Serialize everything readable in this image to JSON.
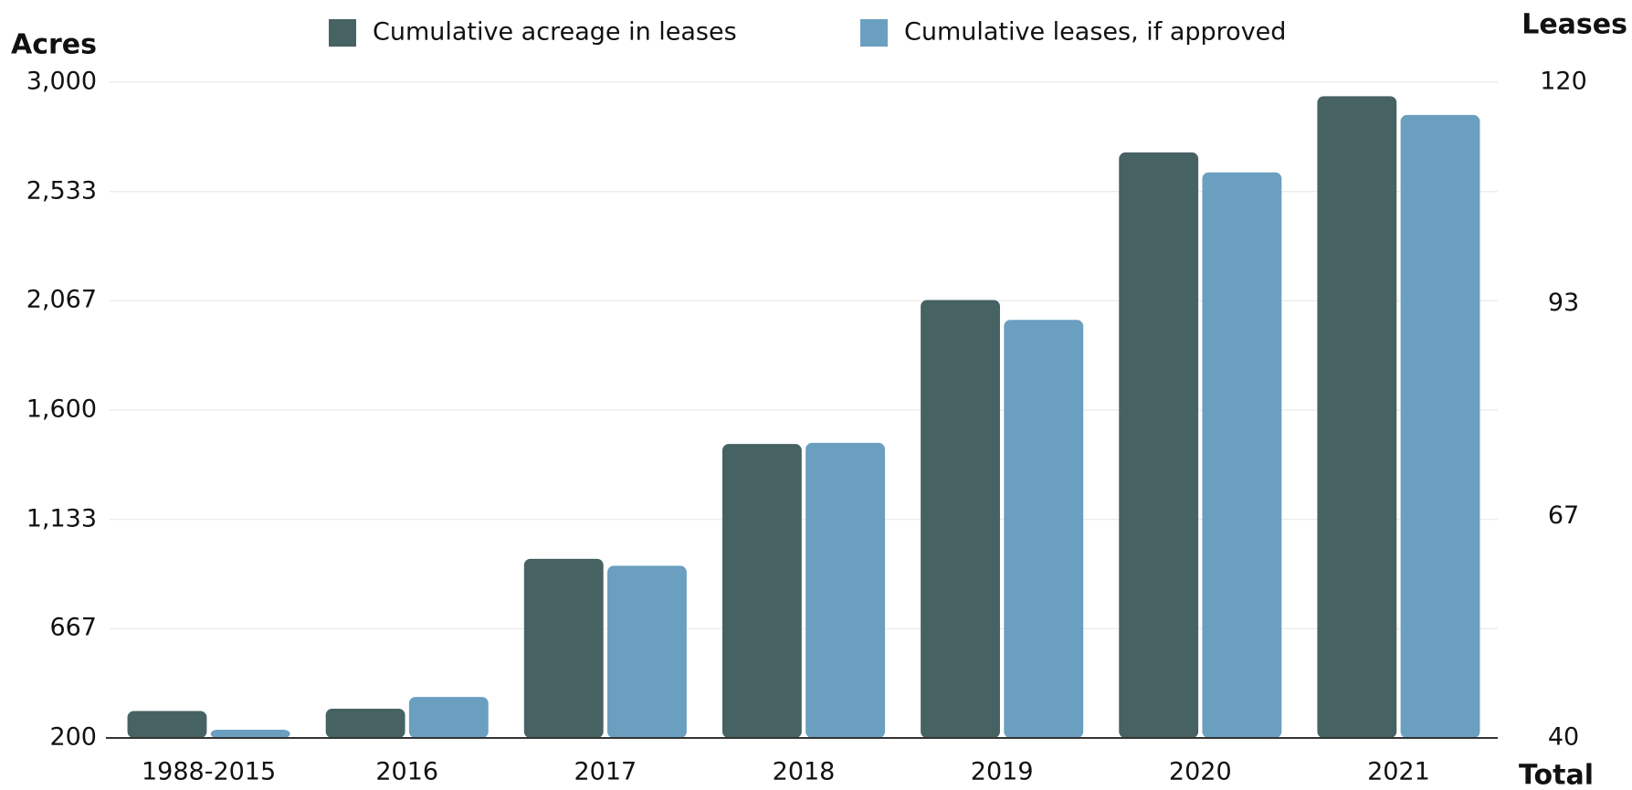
{
  "chart_data": {
    "type": "bar",
    "y_label": "Acres",
    "y2_label": "Leases",
    "x_label": "Total",
    "categories": [
      "1988-2015",
      "2016",
      "2017",
      "2018",
      "2019",
      "2020",
      "2021"
    ],
    "series": [
      {
        "name": "Cumulative acreage in leases",
        "color": "#476262",
        "values": [
          315,
          325,
          965,
          1455,
          2070,
          2700,
          2940
        ]
      },
      {
        "name": "Cumulative leases, if approved",
        "color": "#6a9fc0",
        "axis": "y2",
        "values": [
          41,
          45,
          61,
          76,
          91,
          109,
          116
        ]
      }
    ],
    "ylim": [
      200,
      3000
    ],
    "yticks": [
      200,
      667,
      {
        "value": 1133,
        "label": "1,133"
      },
      {
        "value": 1600,
        "label": "1,600"
      },
      {
        "value": 2067,
        "label": "2,067"
      },
      {
        "value": 2533,
        "label": "2,533"
      },
      {
        "value": 3000,
        "label": "3,000"
      }
    ],
    "y2lim": [
      40,
      120
    ],
    "y2ticks": [
      40,
      67,
      93,
      120
    ],
    "grid": true
  }
}
